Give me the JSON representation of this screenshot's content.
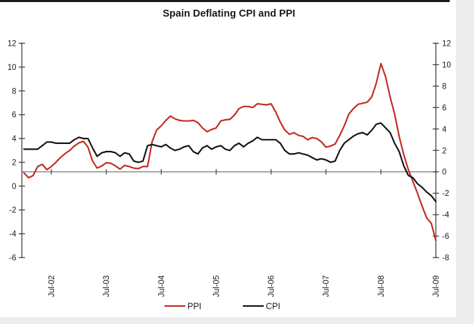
{
  "title": "Spain Deflating CPI and PPI",
  "colors": {
    "ppi_line": "#c32b23",
    "cpi_line": "#141414",
    "zero_line": "#7f7f7f",
    "axis": "#404040",
    "top_border": "#1a1a1a",
    "gray_band": "#ededed",
    "text": "#1a1a1a"
  },
  "legend": [
    {
      "label": "PPI",
      "color": "#c32b23"
    },
    {
      "label": "CPI",
      "color": "#141414"
    }
  ],
  "axes": {
    "left_ticks": [
      "12",
      "10",
      "8",
      "6",
      "4",
      "2",
      "0",
      "-2",
      "-4",
      "-6"
    ],
    "left_range": [
      -6,
      12
    ],
    "right_ticks": [
      "12",
      "10",
      "8",
      "6",
      "4",
      "2",
      "0",
      "-2",
      "-4",
      "-6",
      "-8"
    ],
    "right_range": [
      -8,
      12
    ],
    "x_tick_labels": [
      "Jul-02",
      "Jul-03",
      "Jul-04",
      "Jul-05",
      "Jul-06",
      "Jul-07",
      "Jul-08",
      "Jul-09"
    ]
  },
  "chart_data": {
    "type": "line",
    "title": "Spain Deflating CPI and PPI",
    "x_start": "Jan-2002",
    "x_end": "Jul-2009",
    "frequency": "monthly",
    "x_tick_labels": [
      "Jul-02",
      "Jul-03",
      "Jul-04",
      "Jul-05",
      "Jul-06",
      "Jul-07",
      "Jul-08",
      "Jul-09"
    ],
    "left_axis": {
      "min": -6,
      "max": 12,
      "step": 2,
      "series": "CPI"
    },
    "right_axis": {
      "min": -8,
      "max": 12,
      "step": 2,
      "series": "PPI"
    },
    "zero_line_axis": "right",
    "legend_position": "bottom-center",
    "grid": false,
    "series": [
      {
        "name": "PPI",
        "axis": "right",
        "color": "#c32b23",
        "values": [
          -0.1,
          -0.55,
          -0.35,
          0.5,
          0.7,
          0.2,
          0.5,
          0.9,
          1.35,
          1.7,
          2.0,
          2.4,
          2.7,
          2.85,
          2.3,
          1.0,
          0.35,
          0.55,
          0.85,
          0.8,
          0.55,
          0.25,
          0.6,
          0.5,
          0.35,
          0.3,
          0.5,
          0.5,
          2.8,
          3.9,
          4.3,
          4.8,
          5.2,
          4.95,
          4.8,
          4.75,
          4.75,
          4.8,
          4.6,
          4.1,
          3.75,
          3.95,
          4.1,
          4.75,
          4.85,
          4.9,
          5.3,
          5.9,
          6.1,
          6.1,
          6.0,
          6.35,
          6.3,
          6.25,
          6.35,
          5.6,
          4.65,
          3.9,
          3.5,
          3.65,
          3.4,
          3.3,
          3.0,
          3.2,
          3.1,
          2.8,
          2.3,
          2.4,
          2.6,
          3.4,
          4.3,
          5.4,
          5.9,
          6.3,
          6.4,
          6.5,
          7.0,
          8.3,
          10.1,
          8.9,
          7.0,
          5.4,
          3.3,
          1.6,
          0.2,
          -0.9,
          -2.0,
          -3.2,
          -4.3,
          -4.8,
          -6.4
        ]
      },
      {
        "name": "CPI",
        "axis": "left",
        "color": "#141414",
        "values": [
          3.1,
          3.1,
          3.1,
          3.1,
          3.4,
          3.7,
          3.7,
          3.6,
          3.6,
          3.6,
          3.6,
          3.9,
          4.1,
          4.0,
          4.0,
          3.2,
          2.5,
          2.8,
          2.9,
          2.9,
          2.8,
          2.5,
          2.8,
          2.7,
          2.1,
          2.0,
          2.1,
          3.4,
          3.5,
          3.4,
          3.3,
          3.5,
          3.2,
          3.0,
          3.1,
          3.3,
          3.4,
          2.9,
          2.7,
          3.2,
          3.4,
          3.1,
          3.3,
          3.4,
          3.1,
          3.0,
          3.4,
          3.6,
          3.3,
          3.6,
          3.8,
          4.1,
          3.9,
          3.9,
          3.9,
          3.9,
          3.6,
          3.0,
          2.7,
          2.7,
          2.8,
          2.7,
          2.6,
          2.4,
          2.2,
          2.3,
          2.2,
          2.0,
          2.1,
          3.0,
          3.6,
          3.9,
          4.2,
          4.4,
          4.5,
          4.3,
          4.7,
          5.2,
          5.3,
          4.9,
          4.5,
          3.6,
          2.9,
          1.7,
          0.9,
          0.7,
          0.2,
          -0.1,
          -0.5,
          -0.8,
          -1.3
        ]
      }
    ]
  }
}
